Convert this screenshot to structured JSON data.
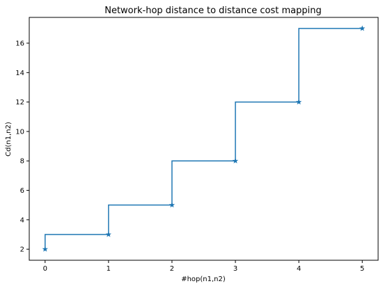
{
  "chart_data": {
    "type": "line",
    "drawstyle": "steps-pre",
    "title": "Network-hop distance to distance cost mapping",
    "xlabel": "#hop(n1,n2)",
    "ylabel": "Cd(n1,n2)",
    "x": [
      0,
      1,
      2,
      3,
      4,
      5
    ],
    "series": [
      {
        "values": [
          2,
          3,
          5,
          8,
          12,
          17
        ],
        "marker": "star",
        "color": "#1f77b4"
      }
    ],
    "xlim": [
      -0.25,
      5.25
    ],
    "ylim": [
      1.25,
      17.75
    ],
    "xticks": [
      0,
      1,
      2,
      3,
      4,
      5
    ],
    "yticks": [
      2,
      4,
      6,
      8,
      10,
      12,
      14,
      16
    ],
    "grid": false,
    "legend": false
  }
}
